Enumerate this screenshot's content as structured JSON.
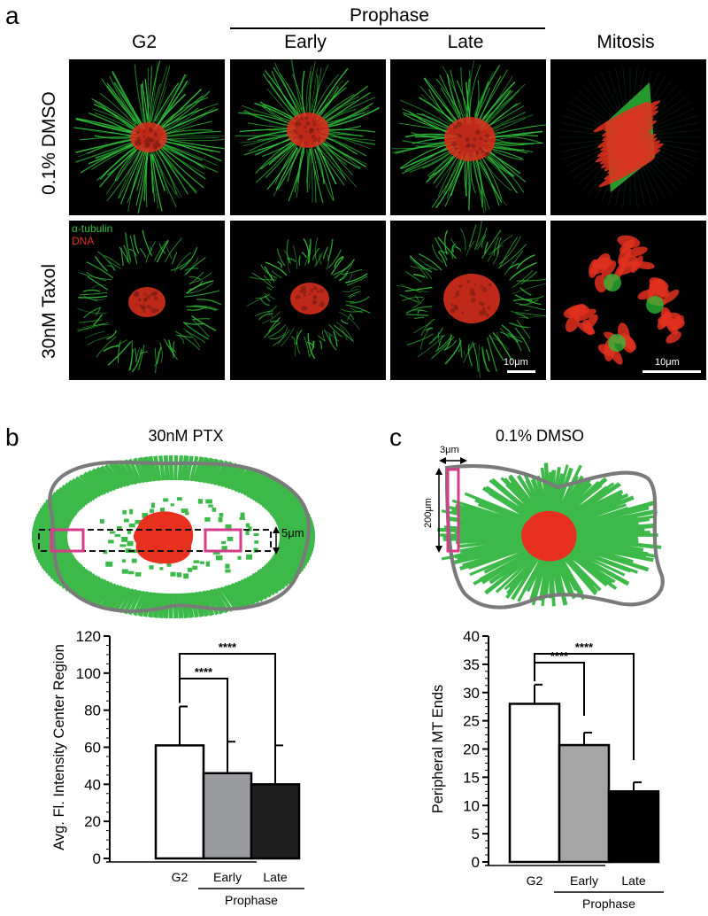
{
  "panel_a": {
    "letter": "a",
    "group_header": "Prophase",
    "columns": [
      "G2",
      "Early",
      "Late",
      "Mitosis"
    ],
    "rows": [
      "0.1% DMSO",
      "30nM Taxol"
    ],
    "legend": {
      "tubulin": "α-tubulin",
      "dna": "DNA"
    },
    "scale_bar_1": "10μm",
    "scale_bar_2": "10μm",
    "colors": {
      "tubulin": "#2fbf3a",
      "dna": "#e0301e",
      "background": "#000000"
    }
  },
  "panel_b": {
    "letter": "b",
    "title": "30nM PTX",
    "dimension_label": "5μm",
    "colors": {
      "cell_fill": "#3db94a",
      "dna": "#e8301e",
      "roi": "#d63b8a",
      "outline": "#777777"
    }
  },
  "panel_c": {
    "letter": "c",
    "title": "0.1% DMSO",
    "width_label": "3μm",
    "height_label": "200μm",
    "colors": {
      "cell_fill": "#3db94a",
      "dna": "#e8301e",
      "roi": "#d63b8a",
      "outline": "#777777"
    }
  },
  "chart_data": [
    {
      "type": "bar",
      "categories": [
        "G2",
        "Early",
        "Late"
      ],
      "values": [
        61,
        46,
        40
      ],
      "errors": [
        21,
        17,
        21
      ],
      "ylabel": "Avg. Fl. Intensity Center Region",
      "xlabel": "",
      "group_label": "Prophase",
      "ylim": [
        0,
        120
      ],
      "yticks": [
        "0",
        "20",
        "40",
        "60",
        "80",
        "100",
        "120"
      ],
      "significance": [
        {
          "from": "G2",
          "to": "Early",
          "label": "****"
        },
        {
          "from": "G2",
          "to": "Late",
          "label": "****"
        }
      ],
      "colors": [
        "#ffffff",
        "#9a9b9f",
        "#1f1f1f"
      ]
    },
    {
      "type": "bar",
      "categories": [
        "G2",
        "Early",
        "Late"
      ],
      "values": [
        28,
        20.7,
        12.5
      ],
      "errors": [
        3.4,
        2.2,
        1.6
      ],
      "ylabel": "Peripheral MT Ends",
      "xlabel": "",
      "group_label": "Prophase",
      "ylim": [
        0,
        40
      ],
      "yticks": [
        "0",
        "5",
        "10",
        "15",
        "20",
        "25",
        "30",
        "35",
        "40"
      ],
      "significance": [
        {
          "from": "G2",
          "to": "Early",
          "label": "****"
        },
        {
          "from": "G2",
          "to": "Late",
          "label": "****"
        }
      ],
      "colors": [
        "#ffffff",
        "#a5a5a5",
        "#000000"
      ]
    }
  ]
}
